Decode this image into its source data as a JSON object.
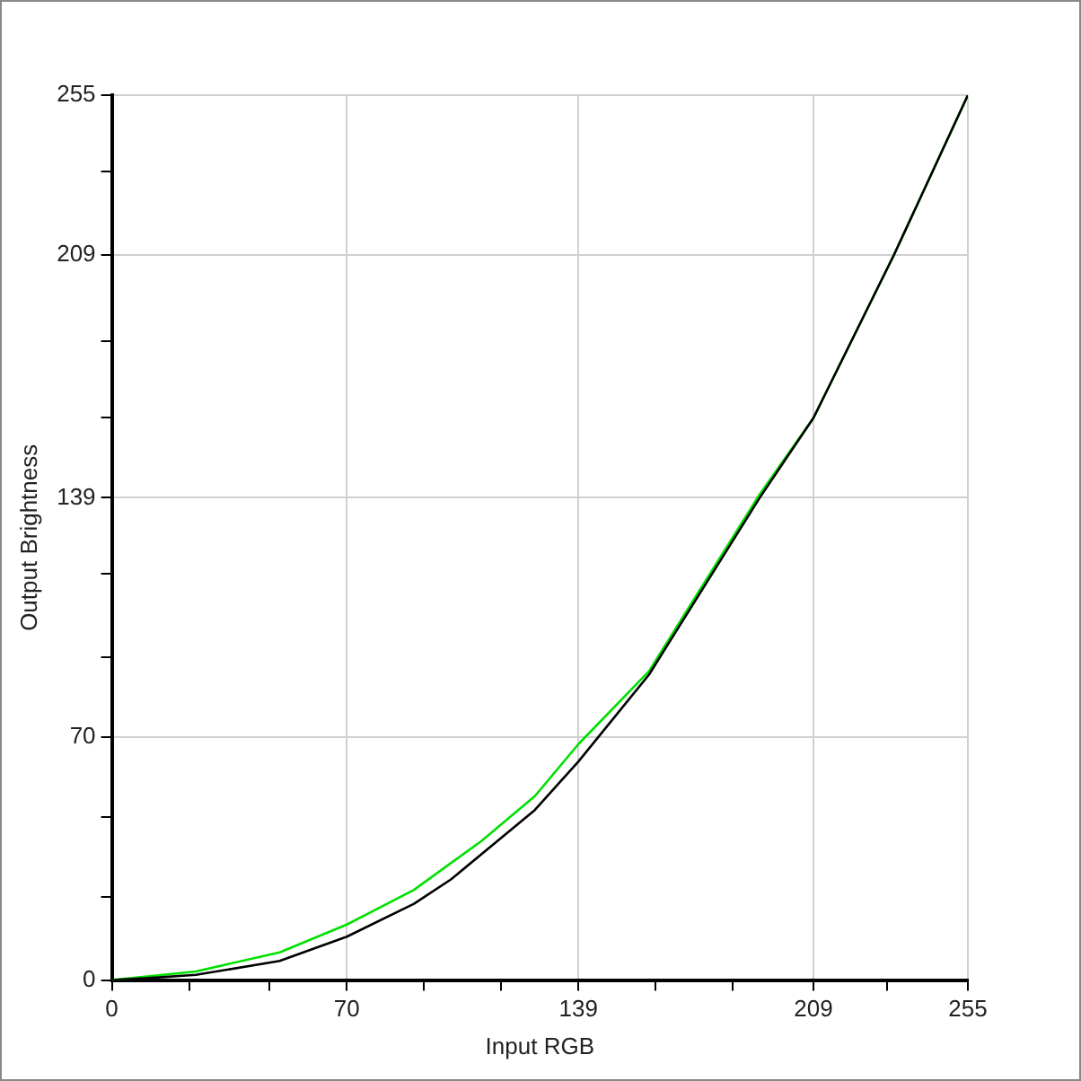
{
  "chart_data": {
    "type": "line",
    "xlabel": "Input RGB",
    "ylabel": "Output Brightness",
    "xlim": [
      0,
      255
    ],
    "ylim": [
      0,
      255
    ],
    "xticks": [
      0,
      {
        "value": 23,
        "label": null
      },
      {
        "value": 47,
        "label": null
      },
      70,
      {
        "value": 93,
        "label": null
      },
      {
        "value": 116,
        "label": null
      },
      139,
      {
        "value": 162,
        "label": null
      },
      {
        "value": 185,
        "label": null
      },
      209,
      {
        "value": 231,
        "label": null
      },
      255
    ],
    "yticks": [
      0,
      {
        "value": 24,
        "label": null
      },
      {
        "value": 47,
        "label": null
      },
      70,
      {
        "value": 93,
        "label": null
      },
      {
        "value": 117,
        "label": null
      },
      139,
      {
        "value": 162,
        "label": null
      },
      {
        "value": 184,
        "label": null
      },
      209,
      {
        "value": 233,
        "label": null
      },
      255
    ],
    "grid": true,
    "legend": false,
    "marker": "none",
    "line_style": "solid",
    "series": [
      {
        "color": "#000000",
        "x": [
          0,
          10,
          25,
          50,
          70,
          90,
          101,
          126,
          139,
          160,
          193,
          209,
          233,
          255
        ],
        "values": [
          0,
          0.5,
          1.5,
          5.5,
          12.5,
          22,
          29,
          49,
          63,
          88,
          139,
          162,
          209,
          255
        ]
      },
      {
        "color": "#00e000",
        "x": [
          0,
          10,
          25,
          50,
          70,
          90,
          110,
          126,
          139,
          160,
          193,
          209,
          233,
          255
        ],
        "values": [
          0,
          1,
          2.5,
          8,
          16,
          26,
          40,
          53,
          68,
          89,
          140,
          162,
          209,
          255
        ]
      }
    ]
  }
}
